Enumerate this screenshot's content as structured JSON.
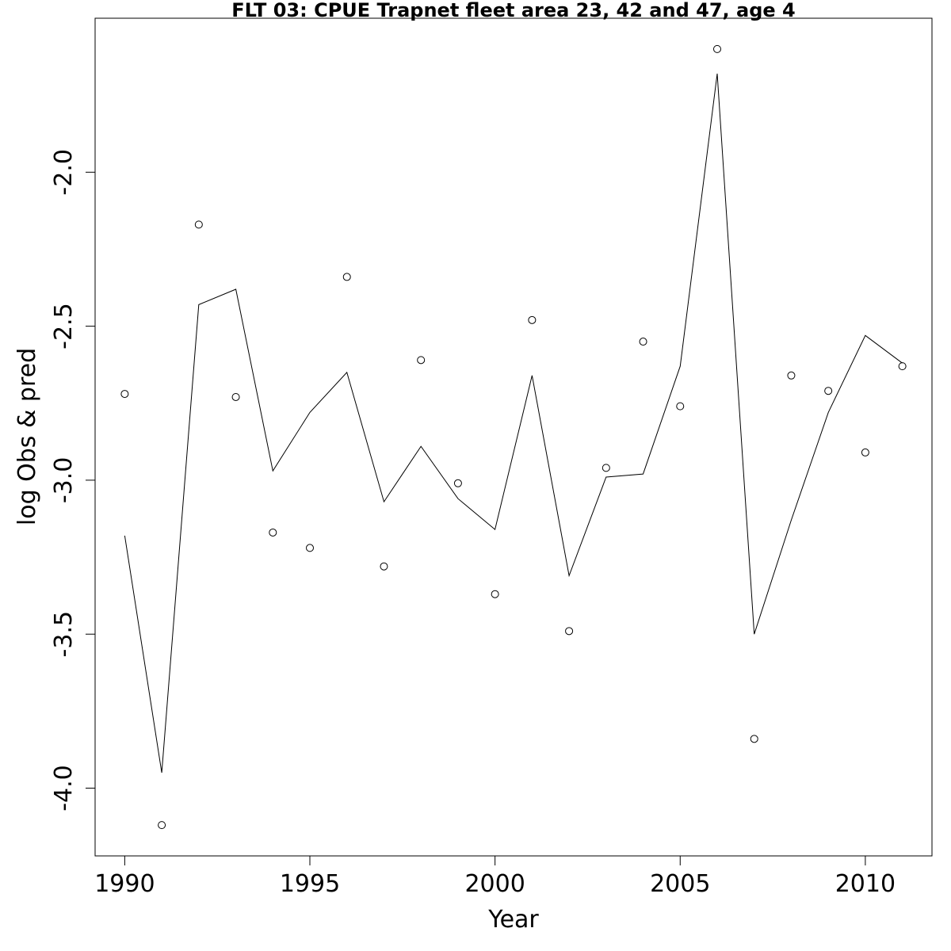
{
  "chart_data": {
    "type": "line",
    "title": "FLT 03: CPUE Trapnet fleet area 23, 42 and 47, age 4",
    "xlabel": "Year",
    "ylabel": "log Obs & pred",
    "xlim": [
      1989.2,
      2011.8
    ],
    "ylim": [
      -4.22,
      -1.5
    ],
    "x_ticks": [
      1990,
      1995,
      2000,
      2005,
      2010
    ],
    "x_tick_labels": [
      "1990",
      "1995",
      "2000",
      "2005",
      "2010"
    ],
    "y_ticks": [
      -4.0,
      -3.5,
      -3.0,
      -2.5,
      -2.0
    ],
    "y_tick_labels": [
      "-4.0",
      "-3.5",
      "-3.0",
      "-2.5",
      "-2.0"
    ],
    "grid": false,
    "x": [
      1990,
      1991,
      1992,
      1993,
      1994,
      1995,
      1996,
      1997,
      1998,
      1999,
      2000,
      2001,
      2002,
      2003,
      2004,
      2005,
      2006,
      2007,
      2008,
      2009,
      2010,
      2011
    ],
    "series": [
      {
        "style": "points",
        "marker": "open-circle",
        "values": [
          -2.72,
          -4.12,
          -2.17,
          -2.73,
          -3.17,
          -3.22,
          -2.34,
          -3.28,
          -2.61,
          -3.01,
          -3.37,
          -2.48,
          -3.49,
          -2.96,
          -2.55,
          -2.76,
          -1.6,
          -3.84,
          -2.66,
          -2.71,
          -2.91,
          -2.63
        ]
      },
      {
        "style": "line",
        "values": [
          -3.18,
          -3.95,
          -2.43,
          -2.38,
          -2.97,
          -2.78,
          -2.65,
          -3.07,
          -2.89,
          -3.06,
          -3.16,
          -2.66,
          -3.31,
          -2.99,
          -2.98,
          -2.63,
          -1.68,
          -3.5,
          -3.13,
          -2.78,
          -2.53,
          -2.62
        ]
      }
    ],
    "colors": {
      "marks": "#000000",
      "background": "#ffffff"
    }
  }
}
